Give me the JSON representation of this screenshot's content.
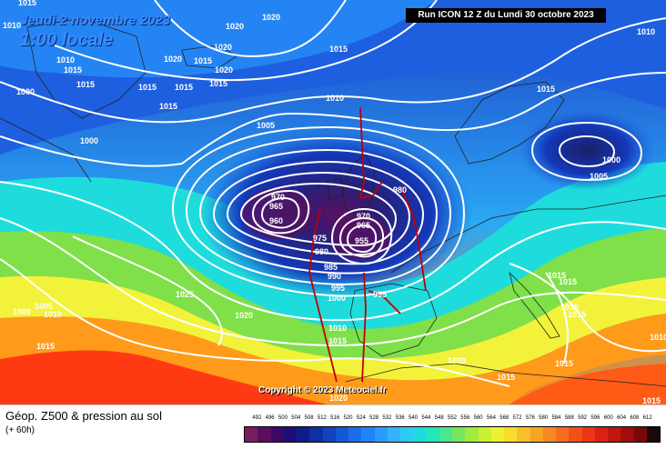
{
  "header": {
    "valid_date": "Jeudi 2 novembre 2023",
    "local_time": "1:00 locale",
    "run_info": "Run ICON 12 Z du Lundi 30 octobre 2023"
  },
  "copyright": "Copyright © 2023 Meteociel.fr",
  "footer": {
    "title": "Géop. Z500 & pression au sol",
    "forecast_hour": "(+ 60h)"
  },
  "colors": {
    "sea_low": "#1a1f66",
    "cold": "#1e5fe0",
    "mid_blue": "#2fa0ff",
    "cyan": "#19d8e8",
    "green": "#7fe04a",
    "yellow": "#f3f23a",
    "orange": "#ff9a1a",
    "red": "#ff3a12",
    "isobar": "#ffffff",
    "trough_line": "#c00000"
  },
  "legend": {
    "values": [
      "492",
      "496",
      "500",
      "504",
      "508",
      "512",
      "516",
      "520",
      "524",
      "528",
      "532",
      "536",
      "540",
      "544",
      "548",
      "552",
      "556",
      "560",
      "564",
      "568",
      "572",
      "576",
      "580",
      "584",
      "588",
      "592",
      "596",
      "600",
      "604",
      "608",
      "612"
    ],
    "colors": [
      "#7a1d5c",
      "#5a1060",
      "#3c0a66",
      "#1e0f78",
      "#101c8a",
      "#0f2fa4",
      "#1242c0",
      "#1558d6",
      "#1a6cea",
      "#1f84f6",
      "#2a9cff",
      "#33b4ff",
      "#2fcaf4",
      "#1fdcdc",
      "#25e6b8",
      "#4ae88c",
      "#78e65e",
      "#a2ea40",
      "#c8f034",
      "#ecf232",
      "#f6dc2e",
      "#f7c02a",
      "#f8a426",
      "#f88822",
      "#f66c1e",
      "#f2501a",
      "#ea3616",
      "#d82212",
      "#c0160f",
      "#a00e0c",
      "#7a080a",
      "#1a0a0a"
    ]
  },
  "isobars": [
    {
      "id": "1020-a",
      "text": "1020"
    },
    {
      "id": "1020-b",
      "text": "1020"
    },
    {
      "id": "1020-c",
      "text": "1020"
    },
    {
      "id": "1015-a",
      "text": "1015"
    },
    {
      "id": "1010-a",
      "text": "1010"
    },
    {
      "id": "1015-b",
      "text": "1015"
    },
    {
      "id": "1010-b",
      "text": "1010"
    },
    {
      "id": "1020-d",
      "text": "1020"
    },
    {
      "id": "1015-c",
      "text": "1015"
    },
    {
      "id": "1020-e",
      "text": "1020"
    },
    {
      "id": "1015-d",
      "text": "1015"
    },
    {
      "id": "1015-e",
      "text": "1015"
    },
    {
      "id": "1000-a",
      "text": "1000"
    },
    {
      "id": "1015-f",
      "text": "1015"
    },
    {
      "id": "1015-g",
      "text": "1015"
    },
    {
      "id": "1010-c",
      "text": "1010"
    },
    {
      "id": "1005-a",
      "text": "1005"
    },
    {
      "id": "1000-b",
      "text": "1000"
    },
    {
      "id": "1015-h",
      "text": "1015"
    },
    {
      "id": "1010-d",
      "text": "1010"
    },
    {
      "id": "1015-i",
      "text": "1015"
    },
    {
      "id": "1000-c",
      "text": "1000"
    },
    {
      "id": "1005-b",
      "text": "1005"
    },
    {
      "id": "970-a",
      "text": "970"
    },
    {
      "id": "965-a",
      "text": "965"
    },
    {
      "id": "960-a",
      "text": "960"
    },
    {
      "id": "980-a",
      "text": "980"
    },
    {
      "id": "970-b",
      "text": "970"
    },
    {
      "id": "965-b",
      "text": "965"
    },
    {
      "id": "955-a",
      "text": "955"
    },
    {
      "id": "975-a",
      "text": "975"
    },
    {
      "id": "980-b",
      "text": "980"
    },
    {
      "id": "985-a",
      "text": "985"
    },
    {
      "id": "990-a",
      "text": "990"
    },
    {
      "id": "995-a",
      "text": "995"
    },
    {
      "id": "1000-d",
      "text": "1000"
    },
    {
      "id": "995-b",
      "text": "995"
    },
    {
      "id": "1025-a",
      "text": "1025"
    },
    {
      "id": "1000-e",
      "text": "1000"
    },
    {
      "id": "1005-c",
      "text": "1005"
    },
    {
      "id": "1010-e",
      "text": "1010"
    },
    {
      "id": "1020-f",
      "text": "1020"
    },
    {
      "id": "1015-j",
      "text": "1015"
    },
    {
      "id": "1010-f",
      "text": "1010"
    },
    {
      "id": "1015-k",
      "text": "1015"
    },
    {
      "id": "1015-l",
      "text": "1015"
    },
    {
      "id": "1015-m",
      "text": "1015"
    },
    {
      "id": "1015-n",
      "text": "1015"
    },
    {
      "id": "1015-o",
      "text": "1015"
    },
    {
      "id": "1020-g",
      "text": "1020"
    },
    {
      "id": "1015-p",
      "text": "1015"
    },
    {
      "id": "1020-h",
      "text": "1020"
    },
    {
      "id": "1015-q",
      "text": "1015"
    },
    {
      "id": "1015-r",
      "text": "1015"
    },
    {
      "id": "1010-g",
      "text": "1010"
    },
    {
      "id": "1015-s",
      "text": "1015"
    }
  ]
}
